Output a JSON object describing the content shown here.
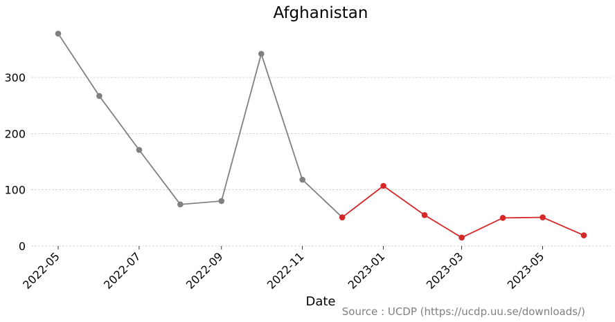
{
  "chart_data": {
    "type": "line",
    "title": "Afghanistan",
    "xlabel": "Date",
    "ylabel": "",
    "source": "Source : UCDP (https://ucdp.uu.se/downloads/)",
    "ylim": [
      0,
      390
    ],
    "yticks": [
      0,
      100,
      200,
      300
    ],
    "xticks": [
      "2022-05",
      "2022-07",
      "2022-09",
      "2022-11",
      "2023-01",
      "2023-03",
      "2023-05"
    ],
    "grid": "y-dashed",
    "series": [
      {
        "color": "#808080",
        "x": [
          "2022-05-01",
          "2022-06-01",
          "2022-07-01",
          "2022-08-01",
          "2022-09-01",
          "2022-10-01",
          "2022-11-01",
          "2022-12-01"
        ],
        "values": [
          378,
          267,
          171,
          74,
          80,
          342,
          118,
          51
        ]
      },
      {
        "color": "#d62728",
        "x": [
          "2022-12-01",
          "2023-01-01",
          "2023-02-01",
          "2023-03-01",
          "2023-04-01",
          "2023-05-01",
          "2023-06-01"
        ],
        "values": [
          51,
          107,
          55,
          15,
          50,
          51,
          19
        ]
      }
    ]
  }
}
